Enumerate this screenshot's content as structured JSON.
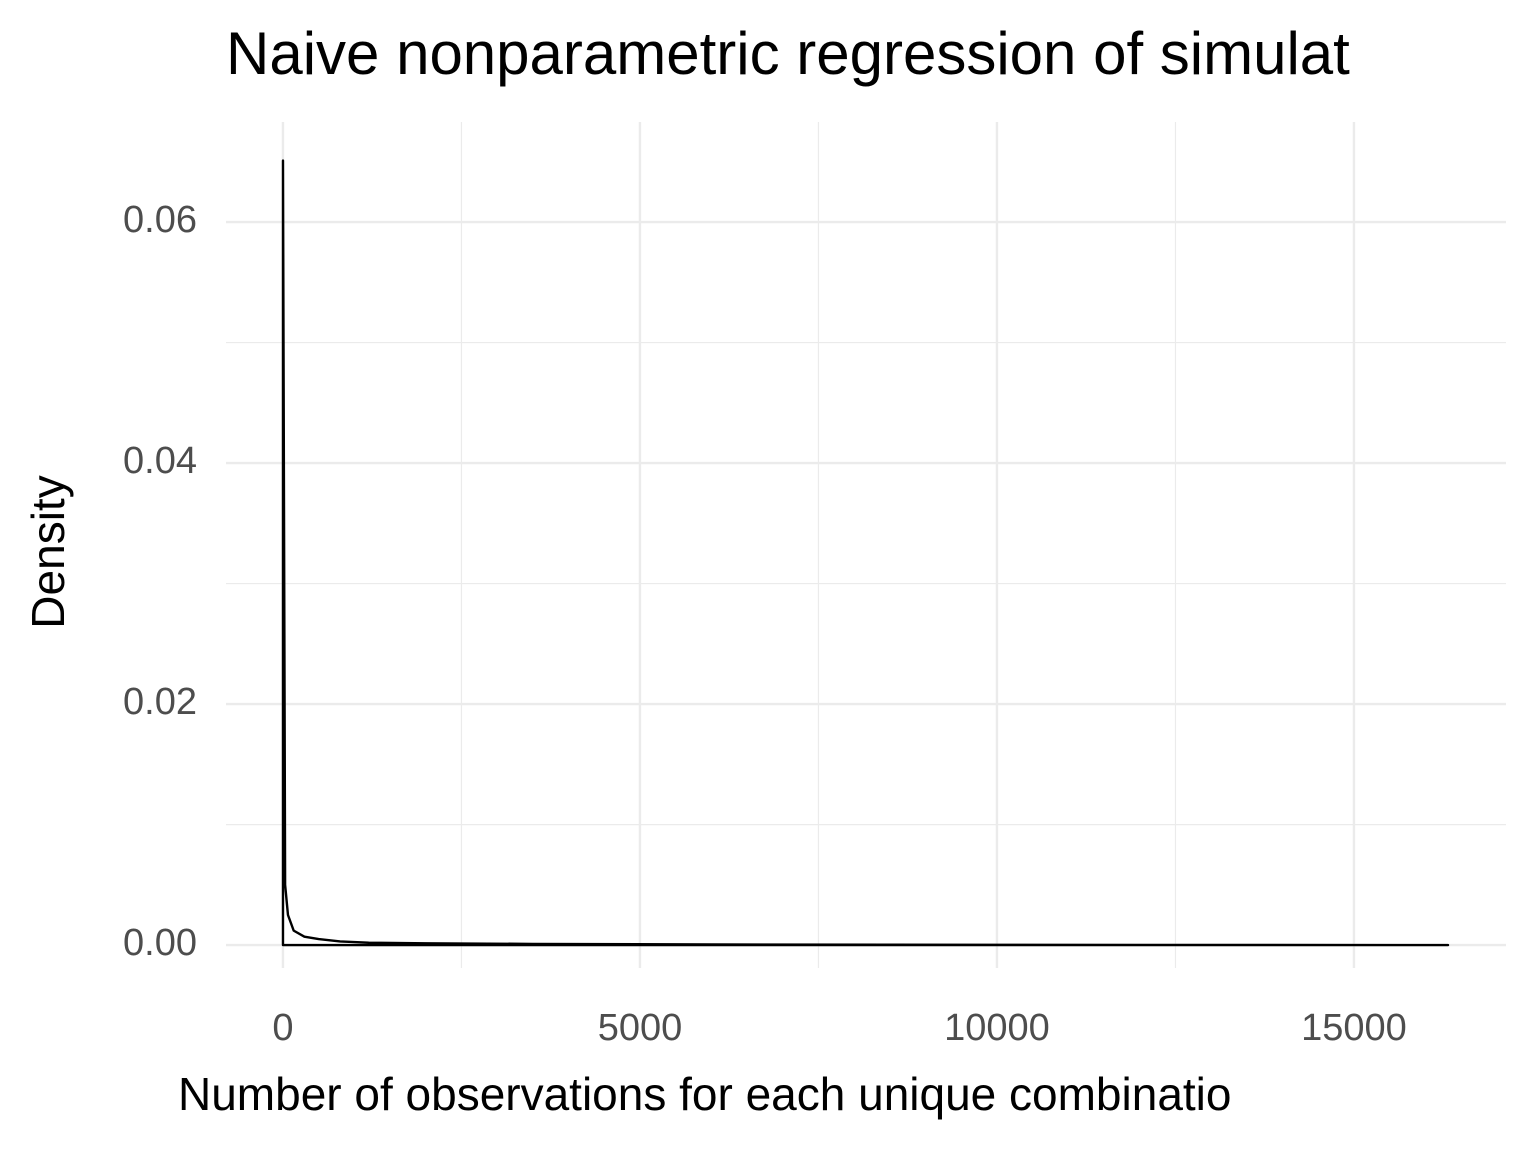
{
  "chart_data": {
    "type": "density",
    "title": "Naive nonparametric regression of simulat",
    "x_label": "Number of observations for each unique combinatio",
    "y_label": "Density",
    "x": [
      0,
      0,
      30,
      70,
      150,
      300,
      500,
      800,
      1200,
      2000,
      3500,
      6000,
      10000,
      16317
    ],
    "values": [
      0,
      0.0651,
      0.005,
      0.0025,
      0.0012,
      0.0007,
      0.0005,
      0.0003,
      0.0002,
      0.00015,
      0.0001,
      5e-05,
      2e-05,
      0
    ],
    "color": "#000000",
    "xlim": [
      -798,
      17129
    ],
    "ylim": [
      -0.0019,
      0.0683
    ],
    "xticks": [
      0,
      5000,
      10000,
      15000
    ],
    "yticks": [
      {
        "value": 0,
        "label": "0.00"
      },
      {
        "value": 0.02,
        "label": "0.02"
      },
      {
        "value": 0.04,
        "label": "0.04"
      },
      {
        "value": 0.06,
        "label": "0.06"
      }
    ],
    "xminor": [
      2500,
      7500,
      12500
    ],
    "yminor": [
      0.01,
      0.03,
      0.05
    ],
    "grid": true
  }
}
